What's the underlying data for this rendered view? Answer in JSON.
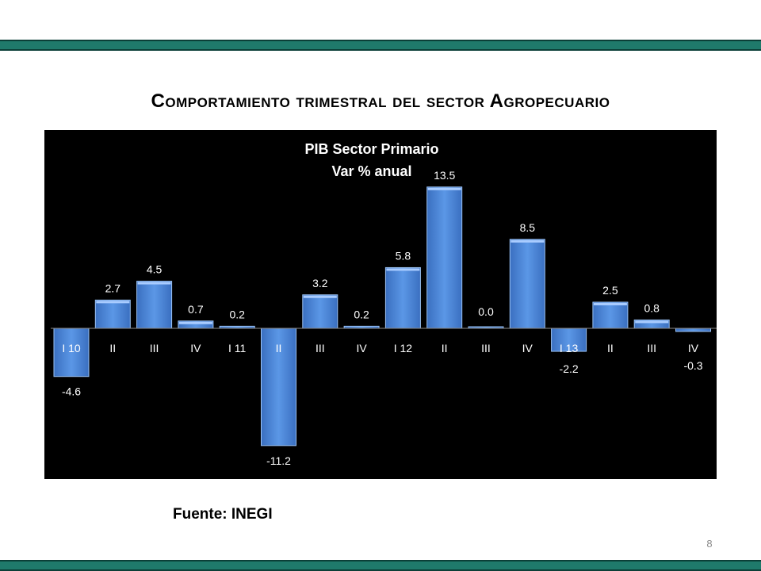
{
  "slide": {
    "title": "Comportamiento trimestral del sector Agropecuario",
    "source": "Fuente: INEGI",
    "page_number": "8"
  },
  "colors": {
    "band": "#1f7a6b",
    "chart_background": "#000000",
    "bar": "#4a86d8",
    "text_on_chart": "#ffffff"
  },
  "chart_data": {
    "type": "bar",
    "title": "PIB Sector Primario",
    "subtitle": "Var % anual",
    "xlabel": "",
    "ylabel": "",
    "categories": [
      "I 10",
      "II",
      "III",
      "IV",
      "I 11",
      "II",
      "III",
      "IV",
      "I 12",
      "II",
      "III",
      "IV",
      "I 13",
      "II",
      "III",
      "IV"
    ],
    "values": [
      -4.6,
      2.7,
      4.5,
      0.7,
      0.2,
      -11.2,
      3.2,
      0.2,
      5.8,
      13.5,
      0.0,
      8.5,
      -2.2,
      2.5,
      0.8,
      -0.3
    ],
    "data_labels": [
      "-4.6",
      "2.7",
      "4.5",
      "0.7",
      "0.2",
      "-11.2",
      "3.2",
      "0.2",
      "5.8",
      "13.5",
      "0.0",
      "8.5",
      "-2.2",
      "2.5",
      "0.8",
      "-0.3"
    ],
    "ylim": [
      -12,
      14
    ],
    "grid": false,
    "legend": "none"
  }
}
